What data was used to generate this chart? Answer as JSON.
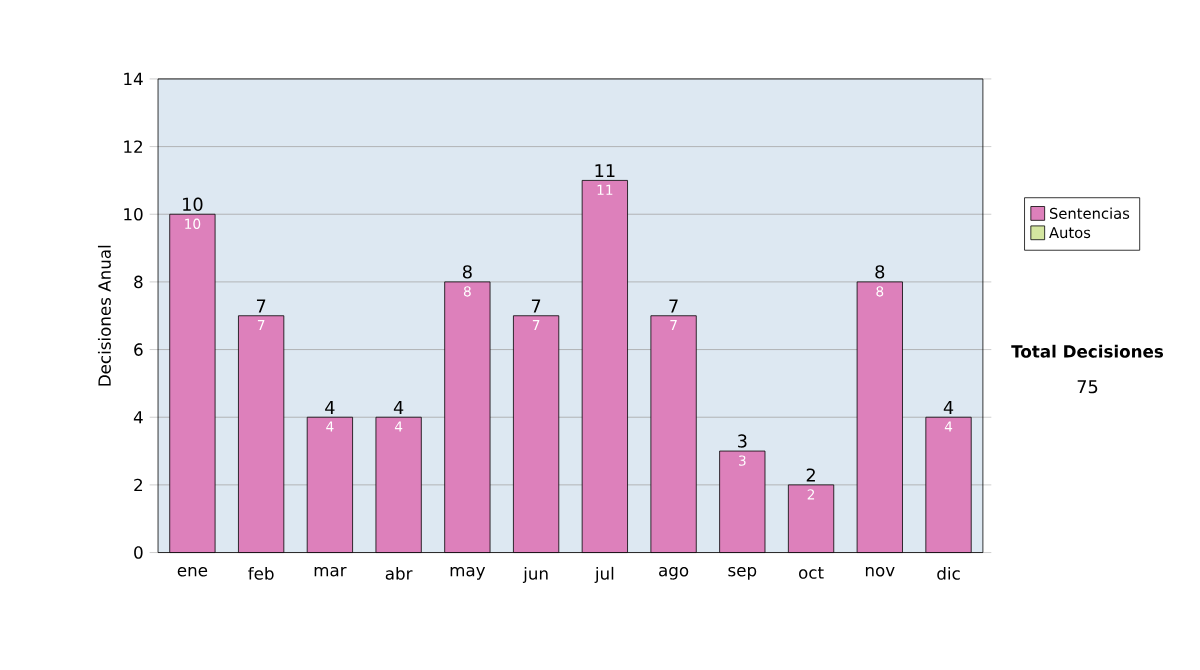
{
  "chart_data": {
    "type": "bar",
    "ylabel": "Decisiones Anual",
    "categories": [
      "ene",
      "feb",
      "mar",
      "abr",
      "may",
      "jun",
      "jul",
      "ago",
      "sep",
      "oct",
      "nov",
      "dic"
    ],
    "series": [
      {
        "name": "Sentencias",
        "color": "#dd80bb",
        "values": [
          10,
          7,
          4,
          4,
          8,
          7,
          11,
          7,
          3,
          2,
          8,
          4
        ],
        "value_labels": [
          "10",
          "7",
          "4",
          "4",
          "8",
          "7",
          "11",
          "7",
          "3",
          "2",
          "8",
          "4"
        ]
      },
      {
        "name": "Autos",
        "color": "#d4e6a0",
        "values": [
          null,
          null,
          null,
          null,
          null,
          null,
          null,
          null,
          null,
          null,
          null,
          null
        ]
      }
    ],
    "totals": [
      "10",
      "7",
      "4",
      "4",
      "8",
      "7",
      "11",
      "7",
      "3",
      "2",
      "8",
      "4"
    ],
    "ylim": [
      0,
      14
    ],
    "yticks": [
      0,
      2,
      4,
      6,
      8,
      10,
      12,
      14
    ],
    "grid": "y",
    "legend": "right",
    "annotations": [
      "Total Decisiones",
      "75"
    ]
  }
}
